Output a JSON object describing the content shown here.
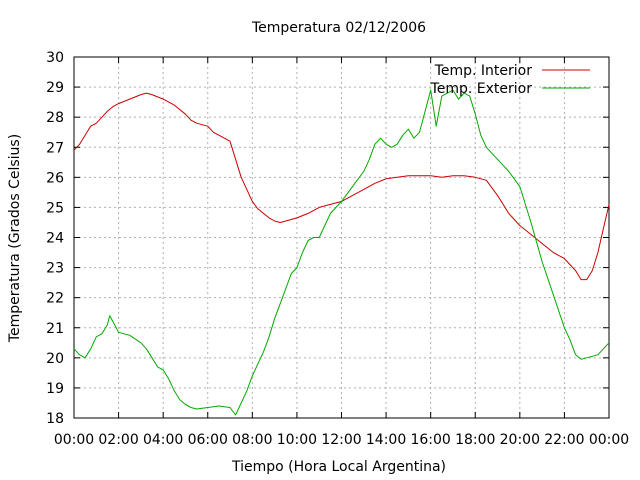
{
  "chart_data": {
    "type": "line",
    "title": "Temperatura 02/12/2006",
    "xlabel": "Tiempo (Hora Local Argentina)",
    "ylabel": "Temperatura (Grados Celsius)",
    "xlim": [
      0,
      24
    ],
    "ylim": [
      18,
      30
    ],
    "x_ticks": [
      "00:00",
      "02:00",
      "04:00",
      "06:00",
      "08:00",
      "10:00",
      "12:00",
      "14:00",
      "16:00",
      "18:00",
      "20:00",
      "22:00",
      "00:00"
    ],
    "y_ticks": [
      "18",
      "19",
      "20",
      "21",
      "22",
      "23",
      "24",
      "25",
      "26",
      "27",
      "28",
      "29",
      "30"
    ],
    "grid": true,
    "legend_position": "top-right",
    "series": [
      {
        "name": "Temp. Interior",
        "color": "#cc0000",
        "x": [
          0,
          0.25,
          0.5,
          0.75,
          1.0,
          1.25,
          1.5,
          1.75,
          2.0,
          2.5,
          3.0,
          3.25,
          3.5,
          4.0,
          4.5,
          5.0,
          5.25,
          5.5,
          6.0,
          6.25,
          6.5,
          7.0,
          7.25,
          7.5,
          7.75,
          8.0,
          8.25,
          8.5,
          8.75,
          9.0,
          9.25,
          9.5,
          10.0,
          10.5,
          11.0,
          11.5,
          12.0,
          12.5,
          13.0,
          13.5,
          14.0,
          14.5,
          15.0,
          15.5,
          16.0,
          16.5,
          17.0,
          17.5,
          18.0,
          18.5,
          19.0,
          19.5,
          20.0,
          20.5,
          21.0,
          21.5,
          22.0,
          22.25,
          22.5,
          22.75,
          23.0,
          23.25,
          23.5,
          23.75,
          24.0
        ],
        "y": [
          26.9,
          27.1,
          27.4,
          27.7,
          27.8,
          28.0,
          28.2,
          28.35,
          28.45,
          28.6,
          28.75,
          28.8,
          28.75,
          28.6,
          28.4,
          28.1,
          27.9,
          27.8,
          27.7,
          27.5,
          27.4,
          27.2,
          26.6,
          26.0,
          25.6,
          25.2,
          24.95,
          24.8,
          24.65,
          24.55,
          24.5,
          24.55,
          24.65,
          24.8,
          25.0,
          25.1,
          25.2,
          25.4,
          25.6,
          25.8,
          25.95,
          26.0,
          26.05,
          26.05,
          26.05,
          26.0,
          26.05,
          26.05,
          26.0,
          25.9,
          25.4,
          24.8,
          24.4,
          24.1,
          23.8,
          23.5,
          23.3,
          23.1,
          22.9,
          22.6,
          22.6,
          22.9,
          23.5,
          24.3,
          25.1
        ]
      },
      {
        "name": "Temp. Exterior",
        "color": "#00aa00",
        "x": [
          0,
          0.25,
          0.5,
          0.75,
          1.0,
          1.25,
          1.5,
          1.6,
          1.75,
          2.0,
          2.5,
          3.0,
          3.25,
          3.5,
          3.75,
          4.0,
          4.25,
          4.5,
          4.75,
          5.0,
          5.25,
          5.5,
          6.0,
          6.5,
          7.0,
          7.25,
          7.5,
          7.75,
          8.0,
          8.25,
          8.5,
          8.75,
          9.0,
          9.25,
          9.5,
          9.75,
          10.0,
          10.25,
          10.5,
          10.75,
          11.0,
          11.25,
          11.5,
          12.0,
          12.5,
          13.0,
          13.25,
          13.5,
          13.75,
          14.0,
          14.25,
          14.5,
          14.75,
          15.0,
          15.25,
          15.5,
          15.75,
          16.0,
          16.25,
          16.5,
          16.75,
          17.0,
          17.25,
          17.5,
          17.75,
          18.0,
          18.25,
          18.5,
          19.0,
          19.5,
          20.0,
          20.5,
          21.0,
          21.5,
          22.0,
          22.25,
          22.5,
          22.75,
          23.0,
          23.5,
          23.75,
          24.0
        ],
        "y": [
          20.3,
          20.1,
          20.0,
          20.3,
          20.7,
          20.8,
          21.1,
          21.4,
          21.2,
          20.85,
          20.75,
          20.5,
          20.3,
          20.0,
          19.7,
          19.6,
          19.3,
          18.9,
          18.6,
          18.45,
          18.35,
          18.3,
          18.35,
          18.4,
          18.35,
          18.1,
          18.5,
          18.9,
          19.4,
          19.8,
          20.2,
          20.7,
          21.3,
          21.8,
          22.3,
          22.8,
          23.0,
          23.5,
          23.9,
          24.0,
          24.0,
          24.4,
          24.8,
          25.2,
          25.7,
          26.2,
          26.6,
          27.1,
          27.3,
          27.1,
          27.0,
          27.1,
          27.4,
          27.6,
          27.3,
          27.5,
          28.2,
          28.9,
          27.7,
          28.7,
          28.8,
          28.9,
          28.6,
          28.8,
          28.7,
          28.1,
          27.4,
          27.0,
          26.6,
          26.2,
          25.7,
          24.5,
          23.2,
          22.1,
          21.0,
          20.6,
          20.1,
          19.95,
          20.0,
          20.1,
          20.3,
          20.5
        ]
      }
    ]
  }
}
